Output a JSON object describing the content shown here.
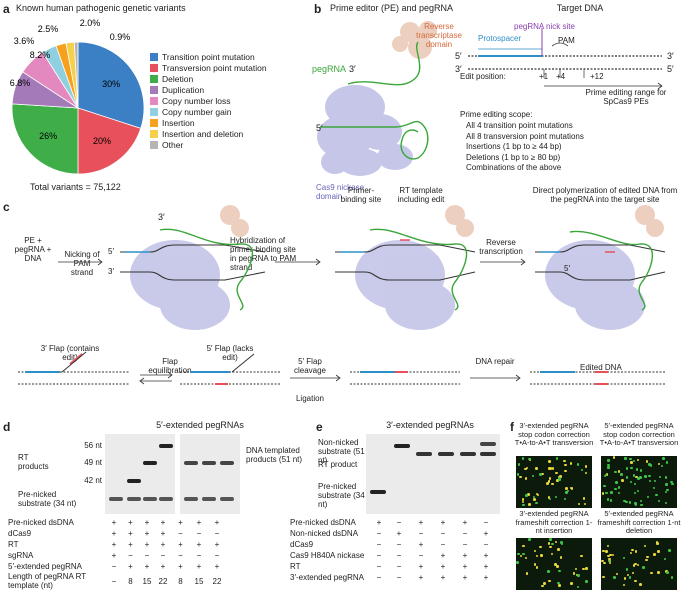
{
  "panel_labels": [
    "a",
    "b",
    "c",
    "d",
    "e",
    "f"
  ],
  "a": {
    "title": "Known human pathogenic genetic variants",
    "total": "Total variants = 75,122",
    "chart_data": {
      "type": "pie",
      "categories": [
        "Transition point mutation",
        "Transversion point mutation",
        "Deletion",
        "Duplication",
        "Copy number loss",
        "Copy number gain",
        "Insertion",
        "Insertion and deletion",
        "Other"
      ],
      "values": [
        30,
        20,
        26,
        8.2,
        6.8,
        3.6,
        2.5,
        2.0,
        0.9
      ],
      "labels": [
        "30%",
        "20%",
        "26%",
        "8.2%",
        "6.8%",
        "3.6%",
        "2.5%",
        "2.0%",
        "0.9%"
      ],
      "colors": [
        "#3b7fc4",
        "#e8505b",
        "#3fae49",
        "#a47ab8",
        "#e489c0",
        "#8fcfe0",
        "#f6a11d",
        "#f5d04b",
        "#b5b5b5"
      ]
    }
  },
  "b": {
    "left_title": "Prime editor (PE) and pegRNA",
    "rt": "Reverse transcriptase domain",
    "pegrna": "pegRNA",
    "three": "3′",
    "five": "5′",
    "cas9": "Cas9 nickase domain",
    "target_title": "Target DNA",
    "nick": "pegRNA nick site",
    "protospacer": "Protospacer",
    "pam": "PAM",
    "s5": "5′",
    "s3": "3′",
    "edit_pos": "Edit position:",
    "p1": "+1",
    "p4": "+4",
    "p12": "+12",
    "range": "Prime editing range for SpCas9 PEs",
    "scope_title": "Prime editing scope:",
    "scope": [
      "All 4 transition point mutations",
      "All 8 transversion point mutations",
      "Insertions (1 bp to ≥ 44 bp)",
      "Deletions (1 bp to ≥ 80 bp)",
      "Combinations of the above"
    ]
  },
  "c": {
    "input": "PE + pegRNA + DNA",
    "step1": "Nicking of PAM strand",
    "step2": "Hybridization of primer-binding site in pegRNA to PAM strand",
    "pbs": "Primer-binding site",
    "rtt": "RT template including edit",
    "step3": "Reverse transcription",
    "direct": "Direct polymerization of edited DNA from the pegRNA into the target site",
    "f3": "3′ Flap (contains edit)",
    "f5": "5′ Flap (lacks edit)",
    "equil": "Flap equilibration",
    "cleave": "5′ Flap cleavage",
    "ligation": "Ligation",
    "repair": "DNA repair",
    "edited": "Edited DNA",
    "p5": "5′",
    "p3": "3′",
    "p5b": "5′"
  },
  "d": {
    "title": "5′-extended pegRNAs",
    "m56": "56 nt",
    "m49": "49 nt",
    "m42": "42 nt",
    "rt_products": "RT products",
    "prenicked": "Pre-nicked substrate (34 nt)",
    "dna_templated": "DNA templated products (51 nt)",
    "rows": [
      {
        "label": "Pre-nicked dsDNA",
        "vals": [
          "+",
          "+",
          "+",
          "+",
          "+",
          "+",
          "+"
        ]
      },
      {
        "label": "dCas9",
        "vals": [
          "+",
          "+",
          "+",
          "+",
          "−",
          "−",
          "−"
        ]
      },
      {
        "label": "RT",
        "vals": [
          "+",
          "+",
          "+",
          "+",
          "+",
          "+",
          "+"
        ]
      },
      {
        "label": "sgRNA",
        "vals": [
          "+",
          "−",
          "−",
          "−",
          "−",
          "−",
          "−"
        ]
      },
      {
        "label": "5′-extended pegRNA",
        "vals": [
          "−",
          "+",
          "+",
          "+",
          "+",
          "+",
          "+"
        ]
      },
      {
        "label": "Length of pegRNA RT template (nt)",
        "vals": [
          "−",
          "8",
          "15",
          "22",
          "8",
          "15",
          "22"
        ]
      }
    ]
  },
  "e": {
    "title": "3′-extended pegRNAs",
    "nonnicked": "Non-nicked substrate (51 nt)",
    "rtprod": "RT product",
    "prenicked": "Pre-nicked substrate (34 nt)",
    "rows": [
      {
        "label": "Pre-nicked dsDNA",
        "vals": [
          "+",
          "−",
          "+",
          "+",
          "+",
          "−"
        ]
      },
      {
        "label": "Non-nicked dsDNA",
        "vals": [
          "−",
          "+",
          "−",
          "−",
          "−",
          "+"
        ]
      },
      {
        "label": "dCas9",
        "vals": [
          "−",
          "−",
          "+",
          "−",
          "−",
          "−"
        ]
      },
      {
        "label": "Cas9 H840A nickase",
        "vals": [
          "−",
          "−",
          "−",
          "+",
          "+",
          "+"
        ]
      },
      {
        "label": "RT",
        "vals": [
          "−",
          "−",
          "+",
          "+",
          "+",
          "+"
        ]
      },
      {
        "label": "3′-extended pegRNA",
        "vals": [
          "−",
          "−",
          "+",
          "+",
          "+",
          "+"
        ]
      }
    ]
  },
  "f": {
    "tl": "3′-extended pegRNA stop codon correction T•A-to-A•T transversion",
    "tr": "5′-extended pegRNA stop codon correction T•A-to-A•T transversion",
    "bl": "3′-extended pegRNA frameshift correction 1-nt insertion",
    "br": "5′-extended pegRNA frameshift correction 1-nt deletion"
  }
}
